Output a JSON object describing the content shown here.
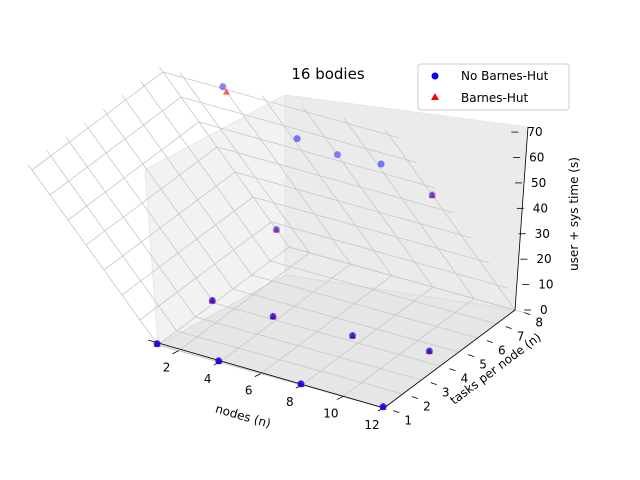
{
  "chart_data": {
    "type": "scatter",
    "projection": "3d",
    "title": "16 bodies",
    "xlabel": "nodes (n)",
    "ylabel": "tasks per node (n)",
    "zlabel": "user + sys time (s)",
    "xlim": [
      1,
      12.5
    ],
    "ylim": [
      1,
      8
    ],
    "zlim": [
      0,
      72
    ],
    "xticks": [
      "2",
      "4",
      "6",
      "8",
      "10",
      "12"
    ],
    "yticks": [
      "1",
      "2",
      "3",
      "4",
      "5",
      "6",
      "7",
      "8"
    ],
    "zticks": [
      "0",
      "10",
      "20",
      "30",
      "40",
      "50",
      "60",
      "70"
    ],
    "legend": "top-right",
    "grid": true,
    "series": [
      {
        "name": "No Barnes-Hut",
        "marker": "circle",
        "color": "#0000ff",
        "points": [
          {
            "x": 1,
            "y": 1,
            "z": 0.5
          },
          {
            "x": 4,
            "y": 1,
            "z": 0.5
          },
          {
            "x": 8,
            "y": 1,
            "z": 0.5
          },
          {
            "x": 12,
            "y": 1,
            "z": 0.5
          },
          {
            "x": 1,
            "y": 4,
            "z": 1
          },
          {
            "x": 4,
            "y": 4,
            "z": 1.5
          },
          {
            "x": 8,
            "y": 4,
            "z": 3
          },
          {
            "x": 12,
            "y": 4,
            "z": 6
          },
          {
            "x": 1,
            "y": 8,
            "z": 7
          },
          {
            "x": 4,
            "y": 8,
            "z": 71
          },
          {
            "x": 8,
            "y": 8,
            "z": 53
          },
          {
            "x": 12,
            "y": 8,
            "z": 46
          },
          {
            "x": 8,
            "y": 7,
            "z": 65
          },
          {
            "x": 12,
            "y": 7,
            "z": 64
          }
        ]
      },
      {
        "name": "Barnes-Hut",
        "marker": "triangle",
        "color": "#ff0000",
        "points": [
          {
            "x": 1,
            "y": 1,
            "z": 0.5
          },
          {
            "x": 4,
            "y": 1,
            "z": 0.5
          },
          {
            "x": 8,
            "y": 1,
            "z": 0.5
          },
          {
            "x": 12,
            "y": 1,
            "z": 0.5
          },
          {
            "x": 1,
            "y": 4,
            "z": 1
          },
          {
            "x": 4,
            "y": 4,
            "z": 1.5
          },
          {
            "x": 8,
            "y": 4,
            "z": 3
          },
          {
            "x": 12,
            "y": 4,
            "z": 6
          },
          {
            "x": 1,
            "y": 8,
            "z": 7
          },
          {
            "x": 4,
            "y": 8,
            "z": 69
          },
          {
            "x": 12,
            "y": 8,
            "z": 46
          }
        ]
      }
    ]
  }
}
